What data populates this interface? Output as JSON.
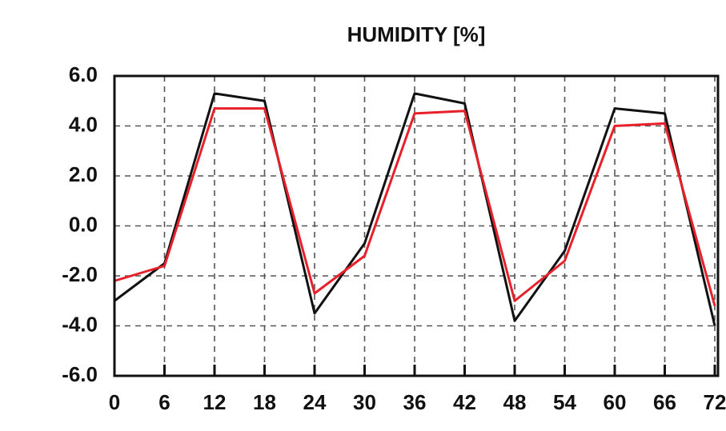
{
  "chart_data": {
    "type": "line",
    "title": "HUMIDITY [%]",
    "x": [
      0,
      6,
      12,
      18,
      24,
      30,
      36,
      42,
      48,
      54,
      60,
      66,
      72
    ],
    "series": [
      {
        "color": "#111111",
        "values": [
          -3.0,
          -1.5,
          5.3,
          5.0,
          -3.5,
          -0.7,
          5.3,
          4.9,
          -3.8,
          -1.0,
          4.7,
          4.5,
          -4.0
        ]
      },
      {
        "color": "#e8202a",
        "values": [
          -2.2,
          -1.6,
          4.7,
          4.7,
          -2.7,
          -1.2,
          4.5,
          4.6,
          -3.0,
          -1.4,
          4.0,
          4.1,
          -3.2
        ]
      }
    ],
    "xlim": [
      0,
      72
    ],
    "xticks": [
      0,
      6,
      12,
      18,
      24,
      30,
      36,
      42,
      48,
      54,
      60,
      66,
      72
    ],
    "ylim": [
      -6,
      6
    ],
    "yticks": [
      {
        "value": -6,
        "label": "-6.0"
      },
      {
        "value": -4,
        "label": "-4.0"
      },
      {
        "value": -2,
        "label": "-2.0"
      },
      {
        "value": 0,
        "label": "0.0"
      },
      {
        "value": 2,
        "label": "2.0"
      },
      {
        "value": 4,
        "label": "4.0"
      },
      {
        "value": 6,
        "label": "6.0"
      }
    ],
    "grid": true
  }
}
